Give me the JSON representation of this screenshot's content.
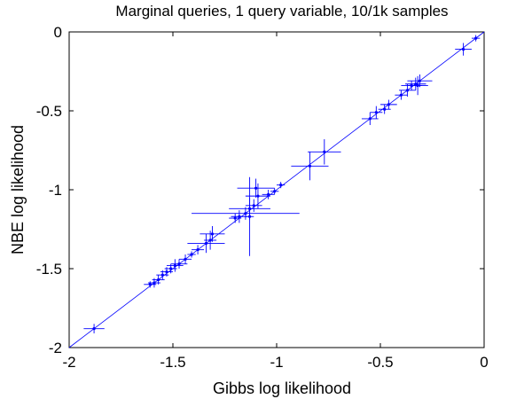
{
  "chart_data": {
    "type": "scatter",
    "title": "Marginal queries, 1 query variable, 10/1k samples",
    "xlabel": "Gibbs log likelihood",
    "ylabel": "NBE log likelihood",
    "xlim": [
      -2,
      0
    ],
    "ylim": [
      -2,
      0
    ],
    "xticks": [
      -2,
      -1.5,
      -1,
      -0.5,
      0
    ],
    "yticks": [
      -2,
      -1.5,
      -1,
      -0.5,
      0
    ],
    "xtick_labels": [
      "-2",
      "-1.5",
      "-1",
      "-0.5",
      "0"
    ],
    "ytick_labels": [
      "-2",
      "-1.5",
      "-1",
      "-0.5",
      "0"
    ],
    "grid": false,
    "reference_line": {
      "from": [
        -2,
        -2
      ],
      "to": [
        0,
        0
      ],
      "style": "y = x"
    },
    "color": "#0000ff",
    "points": [
      {
        "x": -0.04,
        "y": -0.04,
        "xerr": 0.02,
        "yerr": 0.02
      },
      {
        "x": -0.1,
        "y": -0.11,
        "xerr": 0.04,
        "yerr": 0.04
      },
      {
        "x": -0.31,
        "y": -0.31,
        "xerr": 0.06,
        "yerr": 0.04
      },
      {
        "x": -0.33,
        "y": -0.33,
        "xerr": 0.05,
        "yerr": 0.04
      },
      {
        "x": -0.35,
        "y": -0.34,
        "xerr": 0.05,
        "yerr": 0.03
      },
      {
        "x": -0.37,
        "y": -0.37,
        "xerr": 0.04,
        "yerr": 0.04
      },
      {
        "x": -0.32,
        "y": -0.34,
        "xerr": 0.05,
        "yerr": 0.06
      },
      {
        "x": -0.4,
        "y": -0.4,
        "xerr": 0.03,
        "yerr": 0.03
      },
      {
        "x": -0.46,
        "y": -0.46,
        "xerr": 0.04,
        "yerr": 0.03
      },
      {
        "x": -0.48,
        "y": -0.49,
        "xerr": 0.03,
        "yerr": 0.03
      },
      {
        "x": -0.52,
        "y": -0.51,
        "xerr": 0.03,
        "yerr": 0.04
      },
      {
        "x": -0.55,
        "y": -0.55,
        "xerr": 0.04,
        "yerr": 0.04
      },
      {
        "x": -0.77,
        "y": -0.76,
        "xerr": 0.08,
        "yerr": 0.08
      },
      {
        "x": -0.84,
        "y": -0.85,
        "xerr": 0.09,
        "yerr": 0.09
      },
      {
        "x": -0.98,
        "y": -0.97,
        "xerr": 0.02,
        "yerr": 0.02
      },
      {
        "x": -1.01,
        "y": -1.01,
        "xerr": 0.02,
        "yerr": 0.02
      },
      {
        "x": -1.04,
        "y": -1.03,
        "xerr": 0.03,
        "yerr": 0.03
      },
      {
        "x": -1.1,
        "y": -0.99,
        "xerr": 0.09,
        "yerr": 0.06
      },
      {
        "x": -1.09,
        "y": -1.04,
        "xerr": 0.06,
        "yerr": 0.08
      },
      {
        "x": -1.11,
        "y": -1.1,
        "xerr": 0.04,
        "yerr": 0.04
      },
      {
        "x": -1.13,
        "y": -1.12,
        "xerr": 0.1,
        "yerr": 0.07
      },
      {
        "x": -1.15,
        "y": -1.15,
        "xerr": 0.26,
        "yerr": 0.04
      },
      {
        "x": -1.13,
        "y": -1.17,
        "xerr": 0.02,
        "yerr": 0.25
      },
      {
        "x": -1.18,
        "y": -1.17,
        "xerr": 0.04,
        "yerr": 0.04
      },
      {
        "x": -1.2,
        "y": -1.18,
        "xerr": 0.03,
        "yerr": 0.03
      },
      {
        "x": -1.31,
        "y": -1.28,
        "xerr": 0.06,
        "yerr": 0.05
      },
      {
        "x": -1.32,
        "y": -1.32,
        "xerr": 0.03,
        "yerr": 0.06
      },
      {
        "x": -1.34,
        "y": -1.34,
        "xerr": 0.09,
        "yerr": 0.06
      },
      {
        "x": -1.38,
        "y": -1.38,
        "xerr": 0.03,
        "yerr": 0.03
      },
      {
        "x": -1.41,
        "y": -1.41,
        "xerr": 0.02,
        "yerr": 0.02
      },
      {
        "x": -1.44,
        "y": -1.44,
        "xerr": 0.03,
        "yerr": 0.03
      },
      {
        "x": -1.47,
        "y": -1.47,
        "xerr": 0.04,
        "yerr": 0.03
      },
      {
        "x": -1.49,
        "y": -1.48,
        "xerr": 0.04,
        "yerr": 0.04
      },
      {
        "x": -1.51,
        "y": -1.5,
        "xerr": 0.03,
        "yerr": 0.03
      },
      {
        "x": -1.53,
        "y": -1.52,
        "xerr": 0.03,
        "yerr": 0.03
      },
      {
        "x": -1.55,
        "y": -1.54,
        "xerr": 0.03,
        "yerr": 0.03
      },
      {
        "x": -1.57,
        "y": -1.57,
        "xerr": 0.03,
        "yerr": 0.03
      },
      {
        "x": -1.59,
        "y": -1.59,
        "xerr": 0.03,
        "yerr": 0.03
      },
      {
        "x": -1.61,
        "y": -1.6,
        "xerr": 0.03,
        "yerr": 0.02
      },
      {
        "x": -1.88,
        "y": -1.88,
        "xerr": 0.05,
        "yerr": 0.03
      }
    ]
  }
}
